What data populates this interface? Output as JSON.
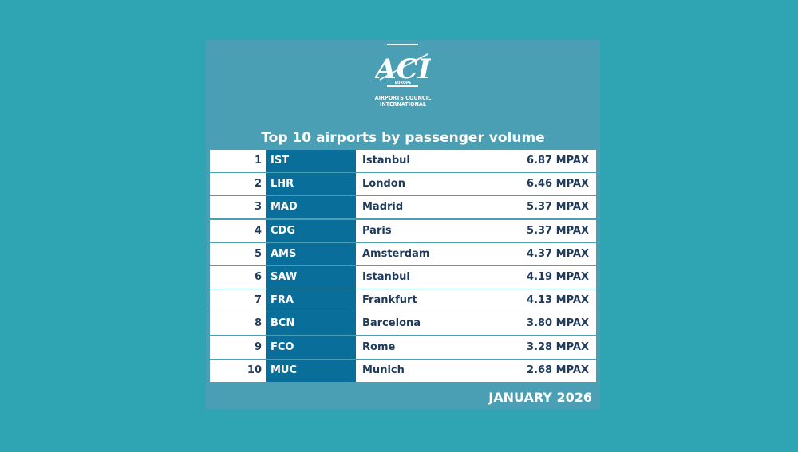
{
  "logo": {
    "letters": "ACI",
    "region": "EUROPE",
    "line1": "AIRPORTS COUNCIL",
    "line2": "INTERNATIONAL"
  },
  "heading": "Top 10 airports by passenger volume",
  "rows": [
    {
      "rank": "1",
      "code": "IST",
      "city": "Istanbul",
      "volume": "6.87 MPAX"
    },
    {
      "rank": "2",
      "code": "LHR",
      "city": "London",
      "volume": "6.46 MPAX"
    },
    {
      "rank": "3",
      "code": "MAD",
      "city": "Madrid",
      "volume": "5.37 MPAX"
    },
    {
      "rank": "4",
      "code": "CDG",
      "city": "Paris",
      "volume": "5.37 MPAX"
    },
    {
      "rank": "5",
      "code": "AMS",
      "city": "Amsterdam",
      "volume": "4.37 MPAX"
    },
    {
      "rank": "6",
      "code": "SAW",
      "city": "Istanbul",
      "volume": "4.19 MPAX"
    },
    {
      "rank": "7",
      "code": "FRA",
      "city": "Frankfurt",
      "volume": "4.13 MPAX"
    },
    {
      "rank": "8",
      "code": "BCN",
      "city": "Barcelona",
      "volume": "3.80 MPAX"
    },
    {
      "rank": "9",
      "code": "FCO",
      "city": "Rome",
      "volume": "3.28 MPAX"
    },
    {
      "rank": "10",
      "code": "MUC",
      "city": "Munich",
      "volume": "2.68 MPAX"
    }
  ],
  "date": "JANUARY 2026",
  "colors": {
    "background": "#2fa5b4",
    "card": "#4b9fb5",
    "code_column": "#0a6e9a",
    "row": "#ffffff",
    "text_dark": "#1f3a5b"
  }
}
